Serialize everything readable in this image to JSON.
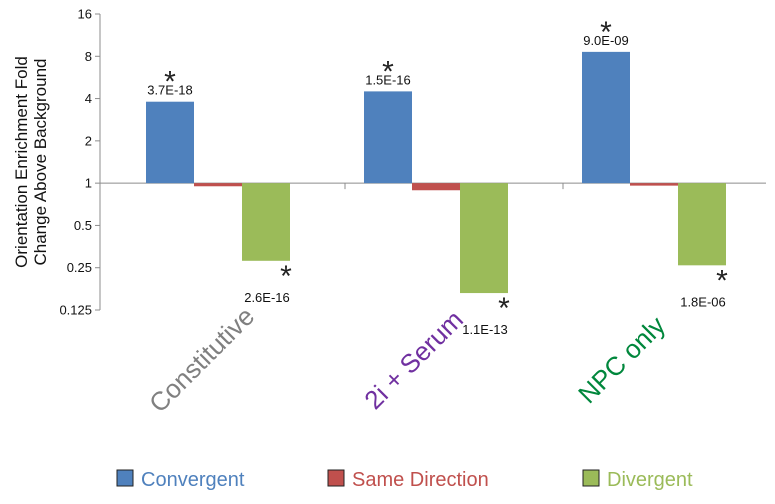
{
  "chart_data": {
    "type": "bar",
    "y_scale": "log2",
    "ylim": [
      0.125,
      16
    ],
    "yticks": [
      "0.125",
      "0.25",
      "0.5",
      "1",
      "2",
      "4",
      "8",
      "16"
    ],
    "ylabel_lines": [
      "Orientation Enrichment Fold",
      "Change Above Background"
    ],
    "baseline": 1,
    "categories": [
      {
        "label": "Constitutive",
        "color": "#808080"
      },
      {
        "label": "2i + Serum",
        "color": "#7030A0"
      },
      {
        "label": "NPC only",
        "color": "#00873C"
      }
    ],
    "series": [
      {
        "name": "Convergent",
        "color": "#4F81BD",
        "values": [
          3.8,
          4.5,
          8.6
        ],
        "pvalues": [
          "3.7E-18",
          "1.5E-16",
          "9.0E-09"
        ]
      },
      {
        "name": "Same Direction",
        "color": "#C0504D",
        "values": [
          0.95,
          0.89,
          0.96
        ],
        "pvalues": [
          "",
          "",
          ""
        ]
      },
      {
        "name": "Divergent",
        "color": "#9BBB59",
        "values": [
          0.28,
          0.165,
          0.26
        ],
        "pvalues": [
          "2.6E-16",
          "1.1E-13",
          "1.8E-06"
        ]
      }
    ],
    "significance_marker": "*",
    "legend_position": "bottom"
  }
}
